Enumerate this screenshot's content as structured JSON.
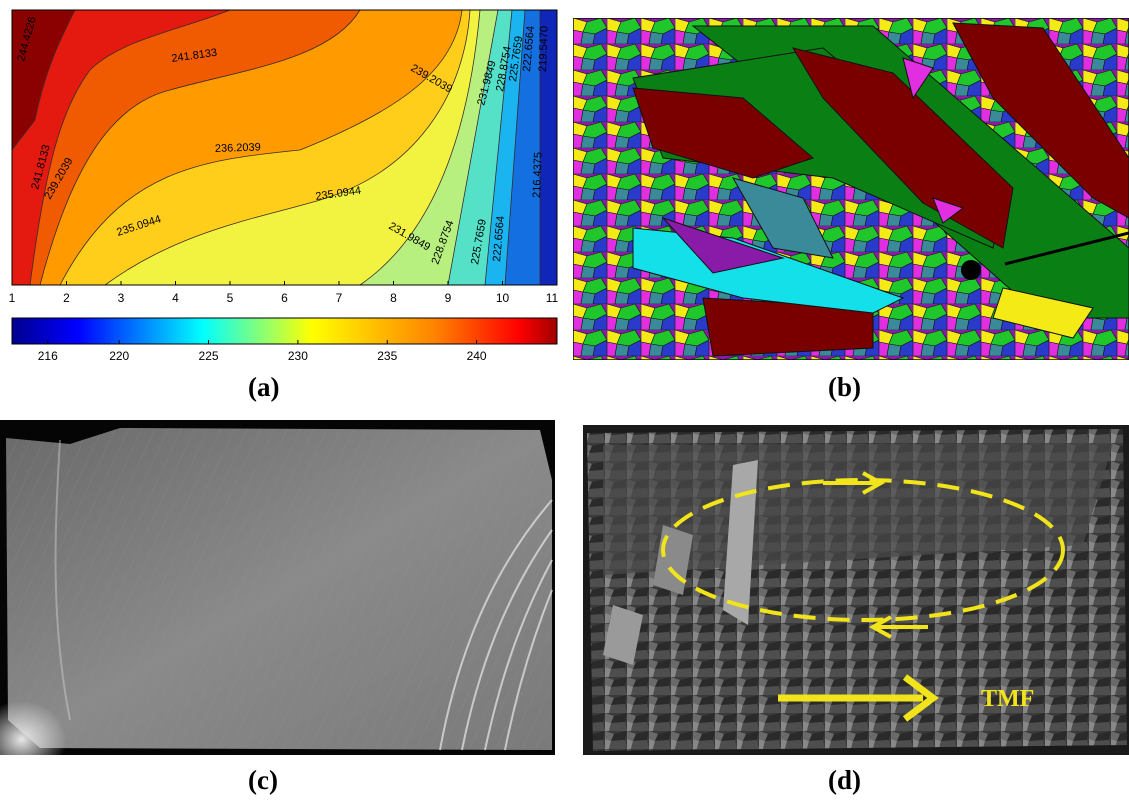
{
  "panels": {
    "a": {
      "caption": "(a)",
      "contour_labels": [
        "244.4226",
        "241.8133",
        "239.2039",
        "236.2039",
        "235.0944",
        "231.9849",
        "228.8754",
        "225.7659",
        "222.6564",
        "219.5470",
        "216.4375"
      ],
      "colorbar_ticks": [
        "216",
        "220",
        "225",
        "230",
        "235",
        "240"
      ]
    },
    "b": {
      "caption": "(b)"
    },
    "c": {
      "caption": "(c)"
    },
    "d": {
      "caption": "(d)",
      "arrow_label": "TMF"
    }
  },
  "chart_data": {
    "type": "heatmap",
    "title": "",
    "xlabel": "",
    "ylabel": "",
    "x_ticks": [
      "1",
      "2",
      "3",
      "4",
      "5",
      "6",
      "7",
      "8",
      "9",
      "10",
      "11"
    ],
    "xlim": [
      1,
      11
    ],
    "colorbar": {
      "ticks": [
        216,
        220,
        225,
        230,
        235,
        240
      ],
      "range": [
        214,
        244.5
      ]
    },
    "contour_levels": [
      244.4226,
      241.8133,
      239.2039,
      236.2039,
      235.0944,
      231.9849,
      228.8754,
      225.7659,
      222.6564,
      219.547,
      216.4375
    ],
    "colors": [
      "#8b0000",
      "#e41a10",
      "#f05a00",
      "#ff9a00",
      "#ffce1a",
      "#f2f240",
      "#b8f080",
      "#55e0c8",
      "#1ab4f0",
      "#1470e0",
      "#1026b8"
    ]
  }
}
